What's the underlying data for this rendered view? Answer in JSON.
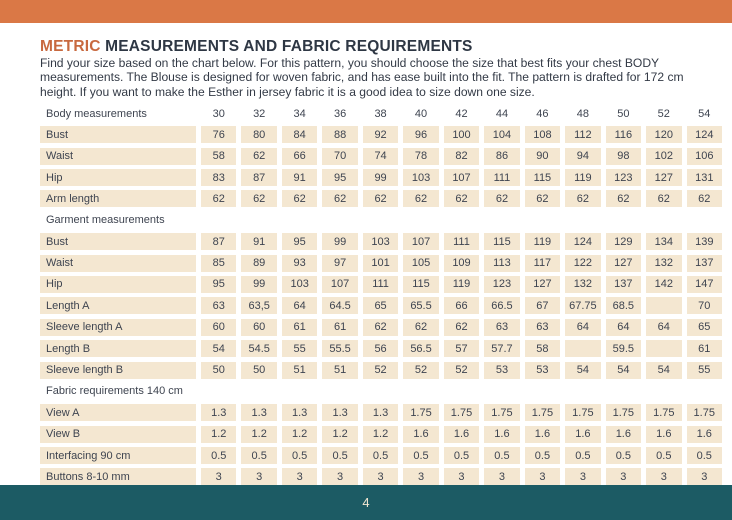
{
  "colors": {
    "top_bar_orange": "#da7846",
    "title_accent_orange": "#c8693f",
    "footer_teal": "#1c5b64",
    "cell_cream": "#f4e7d1",
    "footer_text": "#f2e7d2"
  },
  "header": {
    "title_accent": "METRIC",
    "title_rest": " MEASUREMENTS AND FABRIC REQUIREMENTS",
    "intro": "Find your size based on the chart below. For this pattern, you should choose the size that best fits your chest BODY measurements.  The Blouse is designed for woven fabric, and has ease built into the fit. The pattern is drafted for 172 cm height. If you want to make the Esther in jersey fabric it is a good idea to size down one size."
  },
  "table": {
    "rows": [
      {
        "type": "colhead",
        "label": "Body measurements",
        "values": [
          "30",
          "32",
          "34",
          "36",
          "38",
          "40",
          "42",
          "44",
          "46",
          "48",
          "50",
          "52",
          "54"
        ]
      },
      {
        "type": "data",
        "label": "Bust",
        "values": [
          "76",
          "80",
          "84",
          "88",
          "92",
          "96",
          "100",
          "104",
          "108",
          "112",
          "116",
          "120",
          "124"
        ]
      },
      {
        "type": "data",
        "label": "Waist",
        "values": [
          "58",
          "62",
          "66",
          "70",
          "74",
          "78",
          "82",
          "86",
          "90",
          "94",
          "98",
          "102",
          "106"
        ]
      },
      {
        "type": "data",
        "label": "Hip",
        "values": [
          "83",
          "87",
          "91",
          "95",
          "99",
          "103",
          "107",
          "111",
          "115",
          "119",
          "123",
          "127",
          "131"
        ]
      },
      {
        "type": "data",
        "label": "Arm length",
        "values": [
          "62",
          "62",
          "62",
          "62",
          "62",
          "62",
          "62",
          "62",
          "62",
          "62",
          "62",
          "62",
          "62"
        ]
      },
      {
        "type": "section",
        "label": "Garment measurements",
        "values": []
      },
      {
        "type": "data",
        "label": "Bust",
        "values": [
          "87",
          "91",
          "95",
          "99",
          "103",
          "107",
          "111",
          "115",
          "119",
          "124",
          "129",
          "134",
          "139"
        ]
      },
      {
        "type": "data",
        "label": "Waist",
        "values": [
          "85",
          "89",
          "93",
          "97",
          "101",
          "105",
          "109",
          "113",
          "117",
          "122",
          "127",
          "132",
          "137"
        ]
      },
      {
        "type": "data",
        "label": "Hip",
        "values": [
          "95",
          "99",
          "103",
          "107",
          "111",
          "115",
          "119",
          "123",
          "127",
          "132",
          "137",
          "142",
          "147"
        ]
      },
      {
        "type": "data",
        "label": "Length A",
        "values": [
          "63",
          "63,5",
          "64",
          "64.5",
          "65",
          "65.5",
          "66",
          "66.5",
          "67",
          "67.75",
          "68.5",
          "",
          "70"
        ]
      },
      {
        "type": "data",
        "label": "Sleeve length A",
        "values": [
          "60",
          "60",
          "61",
          "61",
          "62",
          "62",
          "62",
          "63",
          "63",
          "64",
          "64",
          "64",
          "65"
        ]
      },
      {
        "type": "data",
        "label": "Length B",
        "values": [
          "54",
          "54.5",
          "55",
          "55.5",
          "56",
          "56.5",
          "57",
          "57.7",
          "58",
          "",
          "59.5",
          "",
          "61"
        ]
      },
      {
        "type": "data",
        "label": "Sleeve length B",
        "values": [
          "50",
          "50",
          "51",
          "51",
          "52",
          "52",
          "52",
          "53",
          "53",
          "54",
          "54",
          "54",
          "55"
        ]
      },
      {
        "type": "section",
        "label": "Fabric requirements 140 cm",
        "values": []
      },
      {
        "type": "data",
        "label": "View A",
        "values": [
          "1.3",
          "1.3",
          "1.3",
          "1.3",
          "1.3",
          "1.75",
          "1.75",
          "1.75",
          "1.75",
          "1.75",
          "1.75",
          "1.75",
          "1.75"
        ]
      },
      {
        "type": "data",
        "label": "View B",
        "values": [
          "1.2",
          "1.2",
          "1.2",
          "1.2",
          "1.2",
          "1.6",
          "1.6",
          "1.6",
          "1.6",
          "1.6",
          "1.6",
          "1.6",
          "1.6"
        ]
      },
      {
        "type": "data",
        "label": "Interfacing 90 cm",
        "values": [
          "0.5",
          "0.5",
          "0.5",
          "0.5",
          "0.5",
          "0.5",
          "0.5",
          "0.5",
          "0.5",
          "0.5",
          "0.5",
          "0.5",
          "0.5"
        ]
      },
      {
        "type": "data",
        "label": "Buttons 8-10 mm",
        "values": [
          "3",
          "3",
          "3",
          "3",
          "3",
          "3",
          "3",
          "3",
          "3",
          "3",
          "3",
          "3",
          "3"
        ]
      }
    ]
  },
  "footer": {
    "page_number": "4"
  }
}
